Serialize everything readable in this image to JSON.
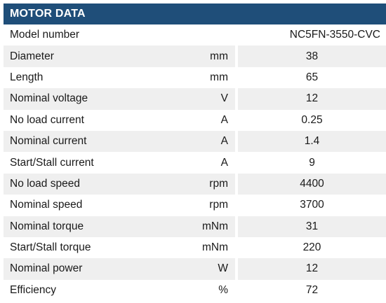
{
  "header": {
    "title": "MOTOR DATA"
  },
  "model": {
    "label": "Model number",
    "unit": "",
    "value": "NC5FN-3550-CVC"
  },
  "rows": [
    {
      "label": "Diameter",
      "unit": "mm",
      "value": "38"
    },
    {
      "label": "Length",
      "unit": "mm",
      "value": "65"
    },
    {
      "label": "Nominal voltage",
      "unit": "V",
      "value": "12"
    },
    {
      "label": "No load current",
      "unit": "A",
      "value": "0.25"
    },
    {
      "label": "Nominal current",
      "unit": "A",
      "value": "1.4"
    },
    {
      "label": "Start/Stall current",
      "unit": "A",
      "value": "9"
    },
    {
      "label": "No load speed",
      "unit": "rpm",
      "value": "4400"
    },
    {
      "label": "Nominal speed",
      "unit": "rpm",
      "value": "3700"
    },
    {
      "label": "Nominal torque",
      "unit": "mNm",
      "value": "31"
    },
    {
      "label": "Start/Stall torque",
      "unit": "mNm",
      "value": "220"
    },
    {
      "label": "Nominal power",
      "unit": "W",
      "value": "12"
    },
    {
      "label": "Efficiency",
      "unit": "%",
      "value": "72"
    }
  ],
  "colors": {
    "header_bg": "#1f4e79",
    "shaded_row_bg": "#efefef"
  }
}
